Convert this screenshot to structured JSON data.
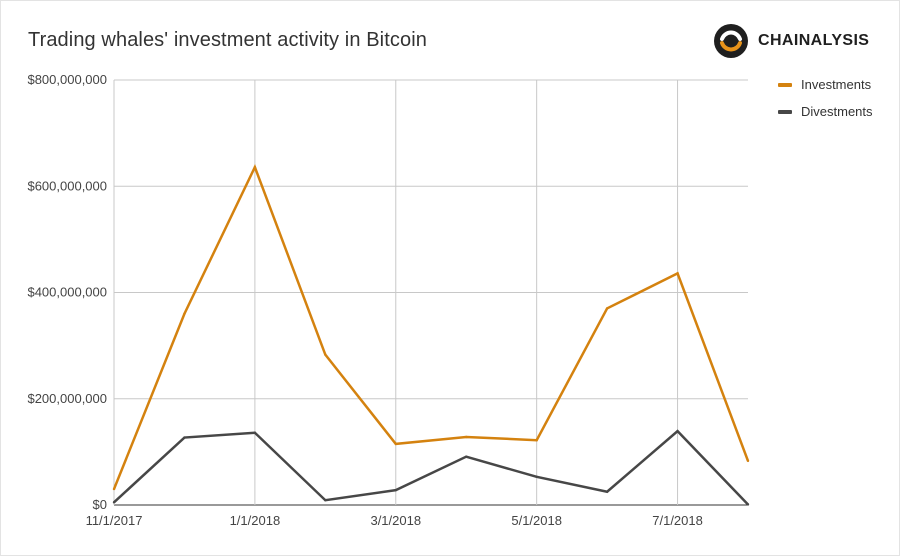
{
  "title": "Trading whales' investment activity in Bitcoin",
  "brand": {
    "name": "CHAINALYSIS",
    "logo_icon": "chainalysis-logo-icon"
  },
  "colors": {
    "investments": "#d4820f",
    "divestments": "#474747",
    "grid": "#c8c8c8",
    "text": "#333333"
  },
  "chart_data": {
    "type": "line",
    "title": "Trading whales' investment activity in Bitcoin",
    "xlabel": "",
    "ylabel": "",
    "x": [
      "11/1/2017",
      "12/1/2017",
      "1/1/2018",
      "2/1/2018",
      "3/1/2018",
      "4/1/2018",
      "5/1/2018",
      "6/1/2018",
      "7/1/2018",
      "8/1/2018"
    ],
    "x_ticks": [
      "11/1/2017",
      "1/1/2018",
      "3/1/2018",
      "5/1/2018",
      "7/1/2018"
    ],
    "y_ticks": [
      "$0",
      "$200,000,000",
      "$400,000,000",
      "$600,000,000",
      "$800,000,000"
    ],
    "ylim": [
      0,
      800000000
    ],
    "grid": true,
    "legend_position": "top-right",
    "series": [
      {
        "name": "Investments",
        "color": "#d4820f",
        "values": [
          30000000,
          360000000,
          636000000,
          283000000,
          115000000,
          128000000,
          122000000,
          370000000,
          436000000,
          83000000
        ]
      },
      {
        "name": "Divestments",
        "color": "#474747",
        "values": [
          5000000,
          127000000,
          136000000,
          9000000,
          28000000,
          91000000,
          53000000,
          25000000,
          139000000,
          1000000
        ]
      }
    ]
  }
}
